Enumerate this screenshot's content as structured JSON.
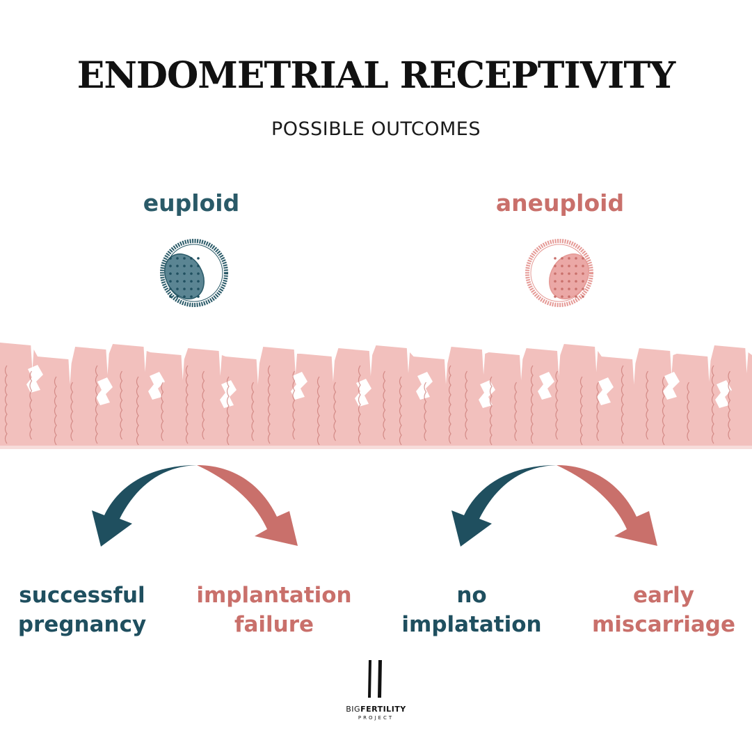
{
  "title": "ENDOMETRIAL RECEPTIVITY",
  "subtitle": "POSSIBLE OUTCOMES",
  "categories": {
    "euploid": "euploid",
    "aneuploid": "aneuploid"
  },
  "outcomes": [
    {
      "line1": "successful",
      "line2": "pregnancy"
    },
    {
      "line1": "implantation",
      "line2": "failure"
    },
    {
      "line1": "no",
      "line2": "implatation"
    },
    {
      "line1": "early",
      "line2": "miscarriage"
    }
  ],
  "logo": {
    "name_light": "BIG",
    "name_bold": "FERTILITY",
    "sub": "PROJECT"
  },
  "colors": {
    "teal": "#1f4f5f",
    "coral": "#c9706b",
    "tissue": "#f2c0bd",
    "vessel": "#c97975",
    "embryo_teal_fill": "#5b8593",
    "embryo_pink_fill": "#eba8a6"
  }
}
